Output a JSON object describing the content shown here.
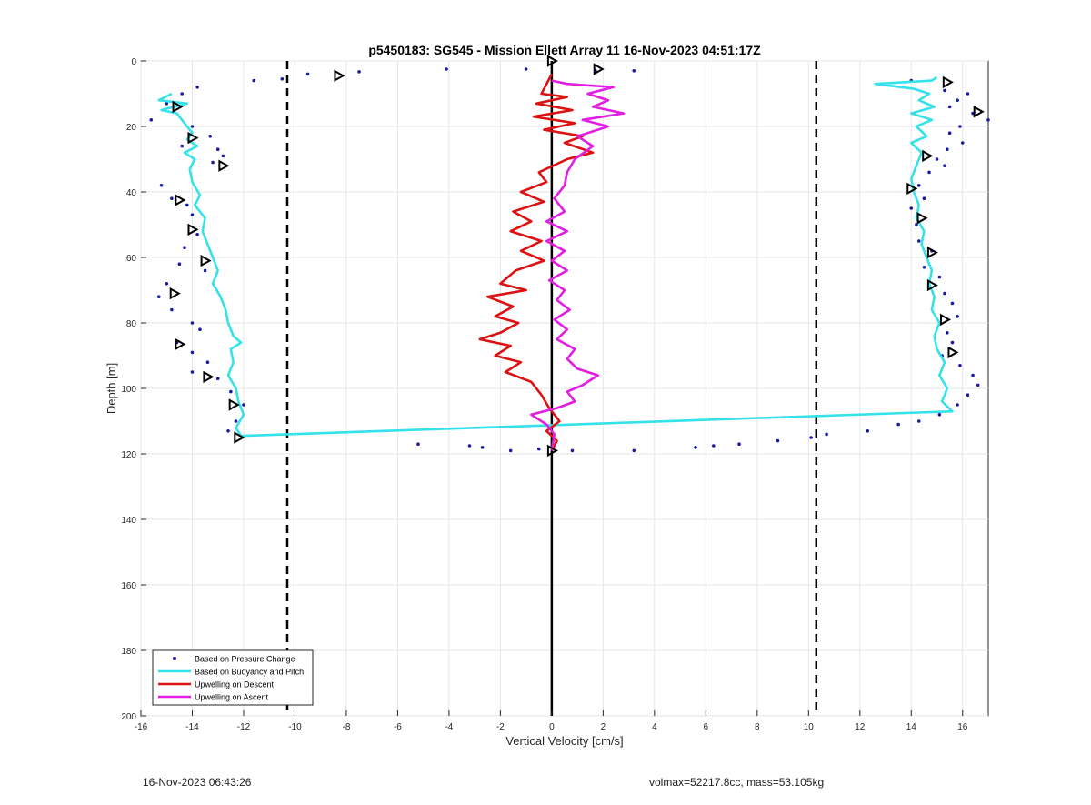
{
  "chart_data": {
    "type": "scatter",
    "title": "p5450183: SG545 - Mission Ellett Array 11 16-Nov-2023 04:51:17Z",
    "xlabel": "Vertical Velocity [cm/s]",
    "ylabel": "Depth [m]",
    "xlim": [
      -16,
      17
    ],
    "ylim": [
      0,
      200
    ],
    "y_reversed": true,
    "grid": true,
    "xticks": [
      -16,
      -14,
      -12,
      -10,
      -8,
      -6,
      -4,
      -2,
      0,
      2,
      4,
      6,
      8,
      10,
      12,
      14,
      16
    ],
    "yticks": [
      0,
      20,
      40,
      60,
      80,
      100,
      120,
      140,
      160,
      180,
      200
    ],
    "legend_position": "bottom-left",
    "reference_lines": [
      {
        "name": "dashed-left",
        "x": -10.3,
        "style": "dashed",
        "color": "#000000"
      },
      {
        "name": "dashed-right",
        "x": 10.3,
        "style": "dashed",
        "color": "#000000"
      },
      {
        "name": "zero",
        "x": 0,
        "style": "solid",
        "color": "#000000"
      }
    ],
    "series": [
      {
        "name": "Based on Pressure Change",
        "kind": "points",
        "color": "#1a1aa8",
        "points": [
          [
            -11.6,
            6
          ],
          [
            -10.5,
            5.5
          ],
          [
            -9.5,
            4
          ],
          [
            -7.5,
            3.3
          ],
          [
            -4.1,
            2.5
          ],
          [
            -1.0,
            2.5
          ],
          [
            1.7,
            3
          ],
          [
            3.2,
            3
          ],
          [
            -15.0,
            13
          ],
          [
            -14.4,
            10
          ],
          [
            -13.8,
            8
          ],
          [
            -15.6,
            18
          ],
          [
            -14.0,
            20
          ],
          [
            -13.3,
            23
          ],
          [
            -13.0,
            27
          ],
          [
            -12.8,
            29
          ],
          [
            -14.4,
            26
          ],
          [
            -13.2,
            31
          ],
          [
            -15.2,
            38
          ],
          [
            -14.8,
            42
          ],
          [
            -14.2,
            44
          ],
          [
            -14.0,
            47
          ],
          [
            -13.8,
            53
          ],
          [
            -14.3,
            57
          ],
          [
            -14.5,
            62
          ],
          [
            -13.5,
            64
          ],
          [
            -15.0,
            68
          ],
          [
            -15.3,
            72
          ],
          [
            -14.8,
            76
          ],
          [
            -14.0,
            80
          ],
          [
            -13.7,
            82
          ],
          [
            -14.6,
            86
          ],
          [
            -14.0,
            89
          ],
          [
            -13.4,
            92
          ],
          [
            -14.0,
            95
          ],
          [
            -13.0,
            97
          ],
          [
            -12.5,
            101
          ],
          [
            -12.0,
            105
          ],
          [
            -12.3,
            110
          ],
          [
            -12.6,
            113
          ],
          [
            -5.2,
            117
          ],
          [
            -3.2,
            117.5
          ],
          [
            -2.7,
            118
          ],
          [
            -1.6,
            119
          ],
          [
            -0.5,
            118.5
          ],
          [
            0.8,
            119
          ],
          [
            3.2,
            119
          ],
          [
            5.6,
            118
          ],
          [
            6.3,
            117.5
          ],
          [
            7.3,
            117
          ],
          [
            8.8,
            116
          ],
          [
            10.1,
            115
          ],
          [
            10.7,
            114
          ],
          [
            12.3,
            113
          ],
          [
            13.5,
            111
          ],
          [
            14.3,
            110
          ],
          [
            14.0,
            6
          ],
          [
            15.3,
            9
          ],
          [
            15.8,
            12
          ],
          [
            16.2,
            10
          ],
          [
            15.5,
            14
          ],
          [
            16.4,
            16
          ],
          [
            17.0,
            18
          ],
          [
            15.9,
            20
          ],
          [
            15.5,
            22
          ],
          [
            16.0,
            25
          ],
          [
            15.4,
            27
          ],
          [
            15.0,
            30
          ],
          [
            15.3,
            32
          ],
          [
            14.7,
            34
          ],
          [
            14.3,
            38
          ],
          [
            14.5,
            42
          ],
          [
            14.0,
            45
          ],
          [
            14.2,
            50
          ],
          [
            14.3,
            55
          ],
          [
            14.8,
            58
          ],
          [
            14.5,
            63
          ],
          [
            15.1,
            66
          ],
          [
            15.3,
            71
          ],
          [
            15.6,
            74
          ],
          [
            15.8,
            78
          ],
          [
            15.4,
            83
          ],
          [
            15.6,
            86
          ],
          [
            15.2,
            90
          ],
          [
            15.9,
            93
          ],
          [
            16.4,
            96
          ],
          [
            16.6,
            99
          ],
          [
            16.2,
            102
          ],
          [
            15.8,
            105
          ],
          [
            15.1,
            108
          ]
        ]
      },
      {
        "name": "Based on Buoyancy and Pitch",
        "kind": "line",
        "color": "#35e2ea",
        "points": [
          [
            -14.8,
            10
          ],
          [
            -15.3,
            12
          ],
          [
            -14.2,
            13
          ],
          [
            -15.2,
            15
          ],
          [
            -14.6,
            16
          ],
          [
            -14.3,
            19
          ],
          [
            -14.0,
            22
          ],
          [
            -14.2,
            24
          ],
          [
            -13.8,
            26
          ],
          [
            -14.3,
            28
          ],
          [
            -13.9,
            30
          ],
          [
            -14.1,
            33
          ],
          [
            -14.0,
            37
          ],
          [
            -13.7,
            41
          ],
          [
            -13.9,
            44
          ],
          [
            -13.5,
            48
          ],
          [
            -13.6,
            52
          ],
          [
            -13.4,
            56
          ],
          [
            -13.2,
            60
          ],
          [
            -13.0,
            64
          ],
          [
            -13.2,
            68
          ],
          [
            -12.9,
            72
          ],
          [
            -12.7,
            76
          ],
          [
            -12.6,
            80
          ],
          [
            -12.4,
            84
          ],
          [
            -12.1,
            86
          ],
          [
            -12.5,
            88
          ],
          [
            -12.4,
            92
          ],
          [
            -12.6,
            96
          ],
          [
            -12.3,
            100
          ],
          [
            -12.2,
            104
          ],
          [
            -12.0,
            108
          ],
          [
            -12.3,
            112
          ],
          [
            -12.1,
            114.5
          ],
          [
            15.6,
            107
          ],
          [
            15.2,
            104
          ],
          [
            15.4,
            100
          ],
          [
            15.1,
            96
          ],
          [
            15.3,
            92
          ],
          [
            15.0,
            88
          ],
          [
            14.9,
            84
          ],
          [
            15.1,
            80
          ],
          [
            14.8,
            76
          ],
          [
            14.9,
            72
          ],
          [
            14.7,
            68
          ],
          [
            14.8,
            64
          ],
          [
            14.6,
            60
          ],
          [
            14.4,
            56
          ],
          [
            14.5,
            52
          ],
          [
            14.2,
            48
          ],
          [
            14.3,
            44
          ],
          [
            14.1,
            40
          ],
          [
            14.0,
            36
          ],
          [
            14.2,
            32
          ],
          [
            14.4,
            28
          ],
          [
            14.0,
            25
          ],
          [
            14.6,
            23
          ],
          [
            14.2,
            20
          ],
          [
            14.8,
            18
          ],
          [
            14.0,
            16
          ],
          [
            14.9,
            14
          ],
          [
            14.3,
            12
          ],
          [
            14.7,
            10
          ],
          [
            14.1,
            8.5
          ],
          [
            12.6,
            7
          ],
          [
            14.8,
            6
          ],
          [
            15.0,
            5
          ]
        ]
      },
      {
        "name": "Upwelling on Descent",
        "kind": "line",
        "color": "#dd1111",
        "points": [
          [
            0,
            4
          ],
          [
            -0.4,
            10
          ],
          [
            0.6,
            11
          ],
          [
            -0.6,
            13
          ],
          [
            0.8,
            15
          ],
          [
            -0.7,
            17
          ],
          [
            0.9,
            19
          ],
          [
            -0.3,
            21
          ],
          [
            1.2,
            23
          ],
          [
            0.5,
            25
          ],
          [
            1.6,
            28
          ],
          [
            0.6,
            30
          ],
          [
            -0.5,
            34
          ],
          [
            -0.2,
            37
          ],
          [
            -1.2,
            40
          ],
          [
            -0.3,
            43
          ],
          [
            -1.5,
            46
          ],
          [
            -0.8,
            49
          ],
          [
            -1.6,
            52
          ],
          [
            -0.4,
            55
          ],
          [
            -1.2,
            58
          ],
          [
            -0.3,
            61
          ],
          [
            -1.4,
            64
          ],
          [
            -2.0,
            68
          ],
          [
            -1.0,
            70
          ],
          [
            -2.5,
            72
          ],
          [
            -1.5,
            75
          ],
          [
            -2.2,
            78
          ],
          [
            -1.3,
            80
          ],
          [
            -2.0,
            83
          ],
          [
            -2.8,
            85
          ],
          [
            -1.6,
            87
          ],
          [
            -2.2,
            90
          ],
          [
            -1.2,
            92
          ],
          [
            -1.8,
            95
          ],
          [
            -0.8,
            98
          ],
          [
            -0.4,
            102
          ],
          [
            -0.1,
            106
          ],
          [
            0.3,
            110
          ],
          [
            -0.2,
            113
          ],
          [
            0.2,
            116
          ],
          [
            0,
            119
          ]
        ]
      },
      {
        "name": "Upwelling on Ascent",
        "kind": "line",
        "color": "#e21ee2",
        "points": [
          [
            0,
            119
          ],
          [
            0.1,
            114
          ],
          [
            -0.2,
            111
          ],
          [
            -0.8,
            108
          ],
          [
            0.2,
            106
          ],
          [
            0.9,
            104
          ],
          [
            0.6,
            101
          ],
          [
            1.2,
            99
          ],
          [
            1.8,
            96
          ],
          [
            1.0,
            94
          ],
          [
            0.6,
            91
          ],
          [
            0.9,
            88
          ],
          [
            0.2,
            85
          ],
          [
            0.6,
            82
          ],
          [
            0.1,
            79
          ],
          [
            0.7,
            76
          ],
          [
            0.2,
            73
          ],
          [
            0.5,
            70
          ],
          [
            -0.1,
            67
          ],
          [
            0.6,
            64
          ],
          [
            0.0,
            61
          ],
          [
            0.5,
            58
          ],
          [
            -0.2,
            55
          ],
          [
            0.6,
            52
          ],
          [
            -0.2,
            49
          ],
          [
            0.5,
            46
          ],
          [
            0.1,
            42
          ],
          [
            0.5,
            38
          ],
          [
            0.6,
            34
          ],
          [
            0.9,
            30
          ],
          [
            1.6,
            26
          ],
          [
            1.0,
            23
          ],
          [
            2.2,
            20
          ],
          [
            1.2,
            18
          ],
          [
            2.8,
            16
          ],
          [
            1.6,
            14
          ],
          [
            2.2,
            12
          ],
          [
            1.4,
            10
          ],
          [
            2.4,
            8
          ],
          [
            0.6,
            7
          ],
          [
            0,
            6
          ]
        ]
      },
      {
        "name": "descent-markers",
        "kind": "markers",
        "color": "#000000",
        "points": [
          [
            -14.6,
            14
          ],
          [
            -14.0,
            23.5
          ],
          [
            -12.8,
            32
          ],
          [
            -14.5,
            42.5
          ],
          [
            -14.0,
            51.5
          ],
          [
            -13.5,
            61
          ],
          [
            -14.7,
            71
          ],
          [
            -14.5,
            86.5
          ],
          [
            -13.4,
            96.5
          ],
          [
            -12.4,
            105
          ],
          [
            -12.2,
            115
          ]
        ]
      },
      {
        "name": "ascent-markers",
        "kind": "markers",
        "color": "#000000",
        "points": [
          [
            15.4,
            6.5
          ],
          [
            16.6,
            15.5
          ],
          [
            14.6,
            29
          ],
          [
            14.0,
            39
          ],
          [
            14.4,
            48
          ],
          [
            14.8,
            58.5
          ],
          [
            14.8,
            68.5
          ],
          [
            15.3,
            79
          ],
          [
            15.6,
            89
          ]
        ]
      },
      {
        "name": "zero-markers",
        "kind": "markers",
        "color": "#000000",
        "points": [
          [
            -8.3,
            4.5
          ],
          [
            1.8,
            2.5
          ],
          [
            0,
            0
          ],
          [
            0,
            119
          ]
        ]
      }
    ],
    "legend": [
      {
        "name": "Based on Pressure Change",
        "symbol": "dot",
        "color": "#1a1aa8"
      },
      {
        "name": "Based on Buoyancy and Pitch",
        "symbol": "line",
        "color": "#35e2ea"
      },
      {
        "name": "Upwelling on Descent",
        "symbol": "line",
        "color": "#dd1111"
      },
      {
        "name": "Upwelling on Ascent",
        "symbol": "line",
        "color": "#e21ee2"
      }
    ]
  },
  "footer": {
    "left": "16-Nov-2023 06:43:26",
    "right": "volmax=52217.8cc, mass=53.105kg"
  }
}
